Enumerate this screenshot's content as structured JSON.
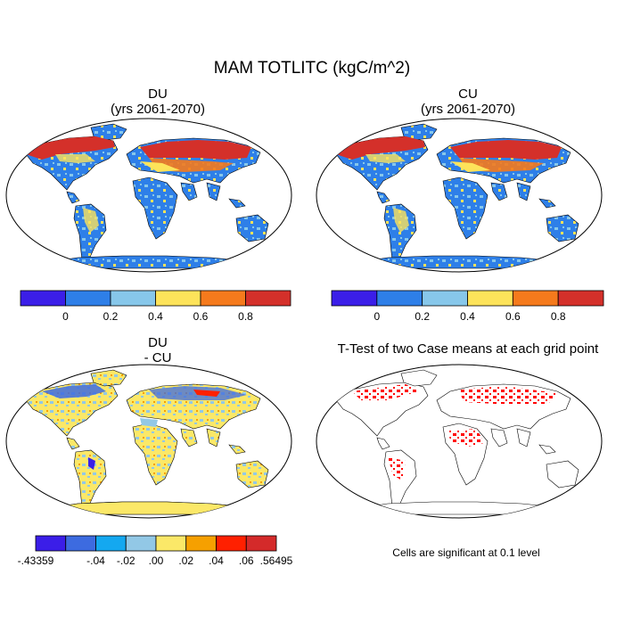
{
  "title": "MAM TOTLITC (kgC/m^2)",
  "panels": [
    {
      "id": "du",
      "title_line1": "DU",
      "title_line2": "(yrs 2061-2070)"
    },
    {
      "id": "cu",
      "title_line1": "CU",
      "title_line2": "(yrs 2061-2070)"
    },
    {
      "id": "diff",
      "title_line1": "DU",
      "title_line2": "- CU"
    },
    {
      "id": "ttest",
      "title_line1": "T-Test of two Case means at each grid point",
      "title_line2": ""
    }
  ],
  "colorbar_main": {
    "colors": [
      "#3b1ee8",
      "#2e7fe8",
      "#87c7ea",
      "#fde35a",
      "#f57a1c",
      "#d4302a"
    ],
    "labels": [
      "0",
      "0.2",
      "0.4",
      "0.6",
      "0.8"
    ]
  },
  "colorbar_diff": {
    "colors": [
      "#3b1ee8",
      "#3d6be0",
      "#14a8f0",
      "#92c8e6",
      "#fbe868",
      "#f6a000",
      "#ff2000",
      "#d42a2a"
    ],
    "labels": [
      "-.43359",
      "-.04",
      "-.02",
      ".00",
      ".02",
      ".04",
      ".06",
      ".56495"
    ]
  },
  "footnote": "Cells are significant at 0.1 level",
  "colors": {
    "ocean_bg": "#ffffff",
    "land_main_base": "#2e7fe8",
    "land_diff_base": "#fbe868",
    "ttest_sig": "#ff0000"
  },
  "chart_data": [
    {
      "type": "heatmap",
      "title": "DU (yrs 2061-2070)",
      "colorbar_levels": [
        0,
        0.2,
        0.4,
        0.6,
        0.8
      ]
    },
    {
      "type": "heatmap",
      "title": "CU (yrs 2061-2070)",
      "colorbar_levels": [
        0,
        0.2,
        0.4,
        0.6,
        0.8
      ]
    },
    {
      "type": "heatmap",
      "title": "DU - CU",
      "colorbar_levels": [
        -0.43359,
        -0.04,
        -0.02,
        0.0,
        0.02,
        0.04,
        0.06,
        0.56495
      ]
    },
    {
      "type": "heatmap",
      "title": "T-Test of two Case means at each grid point",
      "annotation": "Cells are significant at 0.1 level"
    }
  ]
}
